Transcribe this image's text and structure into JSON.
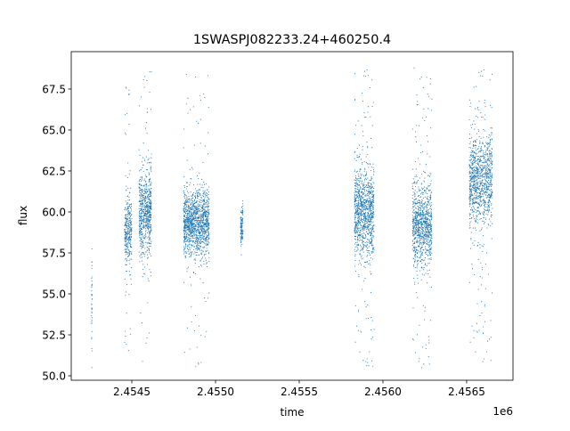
{
  "chart_data": {
    "type": "scatter",
    "title": "1SWASPJ082233.24+460250.4",
    "xlabel": "time",
    "ylabel": "flux",
    "x_offset_label": "1e6",
    "xlim": [
      2454138,
      2456777
    ],
    "ylim": [
      49.73,
      69.78
    ],
    "xticks": [
      2454500,
      2455000,
      2455500,
      2456000,
      2456500
    ],
    "xtick_labels": [
      "2.4545",
      "2.4550",
      "2.4555",
      "2.4560",
      "2.4565"
    ],
    "yticks": [
      50.0,
      52.5,
      55.0,
      57.5,
      60.0,
      62.5,
      65.0,
      67.5
    ],
    "ytick_labels": [
      "50.0",
      "52.5",
      "55.0",
      "57.5",
      "60.0",
      "62.5",
      "65.0",
      "67.5"
    ],
    "grid": false,
    "marker_color": "#1f77b4",
    "observing_seasons": [
      {
        "t_start": 2454259,
        "t_end": 2454263,
        "flux_mean": 54.5,
        "flux_sd": 1.6,
        "n": 40,
        "outlier_frac": 0.0
      },
      {
        "t_start": 2454457,
        "t_end": 2454500,
        "flux_mean": 58.8,
        "flux_sd": 1.0,
        "n": 350,
        "outlier_frac": 0.1
      },
      {
        "t_start": 2454543,
        "t_end": 2454617,
        "flux_mean": 59.9,
        "flux_sd": 1.3,
        "n": 700,
        "outlier_frac": 0.08
      },
      {
        "t_start": 2454809,
        "t_end": 2454963,
        "flux_mean": 59.3,
        "flux_sd": 1.0,
        "n": 1400,
        "outlier_frac": 0.04
      },
      {
        "t_start": 2455149,
        "t_end": 2455165,
        "flux_mean": 59.2,
        "flux_sd": 0.6,
        "n": 120,
        "outlier_frac": 0.0
      },
      {
        "t_start": 2455830,
        "t_end": 2455947,
        "flux_mean": 60.0,
        "flux_sd": 1.3,
        "n": 1100,
        "outlier_frac": 0.1
      },
      {
        "t_start": 2456176,
        "t_end": 2456293,
        "flux_mean": 59.2,
        "flux_sd": 1.2,
        "n": 1000,
        "outlier_frac": 0.12
      },
      {
        "t_start": 2456516,
        "t_end": 2456654,
        "flux_mean": 62.0,
        "flux_sd": 1.3,
        "n": 1100,
        "outlier_frac": 0.1
      }
    ]
  }
}
